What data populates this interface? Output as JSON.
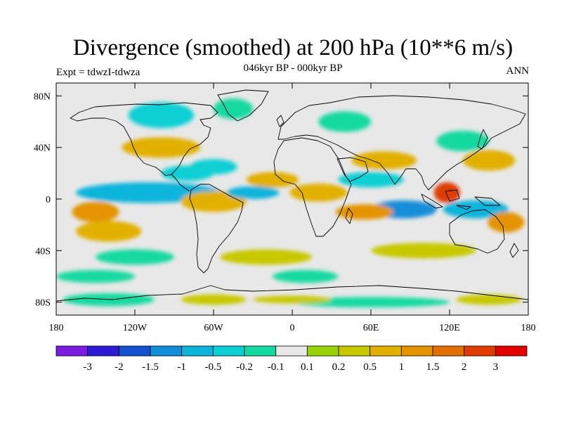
{
  "title": "Divergence (smoothed) at 200 hPa (10**6 m/s)",
  "subtitle": "046kyr BP - 000kyr BP",
  "left_label": "Expt = tdwzI-tdwza",
  "right_label": "ANN",
  "lat_ticks": [
    "80N",
    "40N",
    "0",
    "40S",
    "80S"
  ],
  "lon_ticks": [
    "180",
    "120W",
    "60W",
    "0",
    "60E",
    "120E",
    "180"
  ],
  "colorbar": {
    "labels": [
      "-3",
      "-2",
      "-1.5",
      "-1",
      "-0.5",
      "-0.2",
      "-0.1",
      "0.1",
      "0.2",
      "0.5",
      "1",
      "1.5",
      "2",
      "3"
    ],
    "colors": [
      "#7a1de0",
      "#2e1bd4",
      "#1450d0",
      "#128ed8",
      "#0eb4dc",
      "#0ccfd4",
      "#12d9a0",
      "#e8e8e8",
      "#99d40a",
      "#c8c800",
      "#e2b000",
      "#e49400",
      "#e27000",
      "#de3c00",
      "#e00000"
    ]
  },
  "chart_data": {
    "type": "heatmap",
    "variable": "Divergence (smoothed) at 200 hPa",
    "units": "10**6 m/s",
    "xlim": [
      -180,
      180
    ],
    "ylim": [
      -90,
      90
    ],
    "x_ticks": [
      -180,
      -120,
      -60,
      0,
      60,
      120,
      180
    ],
    "y_ticks": [
      80,
      40,
      0,
      -40,
      -80
    ],
    "levels": [
      -3,
      -2,
      -1.5,
      -1,
      -0.5,
      -0.2,
      -0.1,
      0.1,
      0.2,
      0.5,
      1,
      1.5,
      2,
      3
    ],
    "features": [
      {
        "lon": 100,
        "lat": -8,
        "value": -3,
        "rx": 10,
        "ry": 5
      },
      {
        "lon": 85,
        "lat": -8,
        "value": -1.5,
        "rx": 25,
        "ry": 7
      },
      {
        "lon": 140,
        "lat": -8,
        "value": -1,
        "rx": 25,
        "ry": 7
      },
      {
        "lon": 118,
        "lat": 5,
        "value": 2,
        "rx": 10,
        "ry": 8
      },
      {
        "lon": 55,
        "lat": -10,
        "value": 1,
        "rx": 22,
        "ry": 6
      },
      {
        "lon": 163,
        "lat": -18,
        "value": 1,
        "rx": 14,
        "ry": 8
      },
      {
        "lon": -110,
        "lat": 5,
        "value": -1,
        "rx": 55,
        "ry": 8
      },
      {
        "lon": -150,
        "lat": -10,
        "value": 1,
        "rx": 18,
        "ry": 8
      },
      {
        "lon": -140,
        "lat": -25,
        "value": 0.5,
        "rx": 25,
        "ry": 8
      },
      {
        "lon": -60,
        "lat": -2,
        "value": 0.5,
        "rx": 25,
        "ry": 8
      },
      {
        "lon": -30,
        "lat": 5,
        "value": -1,
        "rx": 20,
        "ry": 5
      },
      {
        "lon": -80,
        "lat": 20,
        "value": -0.5,
        "rx": 20,
        "ry": 6
      },
      {
        "lon": -100,
        "lat": 40,
        "value": 0.5,
        "rx": 30,
        "ry": 8
      },
      {
        "lon": -60,
        "lat": 25,
        "value": -0.5,
        "rx": 18,
        "ry": 6
      },
      {
        "lon": -15,
        "lat": 15,
        "value": 0.5,
        "rx": 20,
        "ry": 6
      },
      {
        "lon": 20,
        "lat": 5,
        "value": 0.5,
        "rx": 22,
        "ry": 7
      },
      {
        "lon": 70,
        "lat": 30,
        "value": 0.5,
        "rx": 25,
        "ry": 7
      },
      {
        "lon": 60,
        "lat": 15,
        "value": -0.5,
        "rx": 25,
        "ry": 6
      },
      {
        "lon": 150,
        "lat": 30,
        "value": 0.5,
        "rx": 20,
        "ry": 8
      },
      {
        "lon": -100,
        "lat": 65,
        "value": -0.5,
        "rx": 25,
        "ry": 10
      },
      {
        "lon": -45,
        "lat": 70,
        "value": -0.2,
        "rx": 15,
        "ry": 8
      },
      {
        "lon": 40,
        "lat": 60,
        "value": -0.2,
        "rx": 20,
        "ry": 8
      },
      {
        "lon": 130,
        "lat": 45,
        "value": -0.2,
        "rx": 20,
        "ry": 8
      },
      {
        "lon": -20,
        "lat": -45,
        "value": 0.2,
        "rx": 35,
        "ry": 6
      },
      {
        "lon": 100,
        "lat": -40,
        "value": 0.2,
        "rx": 40,
        "ry": 6
      },
      {
        "lon": -120,
        "lat": -45,
        "value": -0.2,
        "rx": 30,
        "ry": 6
      },
      {
        "lon": 10,
        "lat": -60,
        "value": -0.2,
        "rx": 25,
        "ry": 5
      },
      {
        "lon": -150,
        "lat": -60,
        "value": -0.2,
        "rx": 30,
        "ry": 5
      },
      {
        "lon": -140,
        "lat": -78,
        "value": -0.2,
        "rx": 35,
        "ry": 5
      },
      {
        "lon": 60,
        "lat": -80,
        "value": -0.2,
        "rx": 60,
        "ry": 4
      },
      {
        "lon": -60,
        "lat": -78,
        "value": 0.2,
        "rx": 25,
        "ry": 4
      },
      {
        "lon": 150,
        "lat": -78,
        "value": 0.2,
        "rx": 25,
        "ry": 4
      },
      {
        "lon": 0,
        "lat": -78,
        "value": 0.2,
        "rx": 30,
        "ry": 3
      }
    ]
  }
}
